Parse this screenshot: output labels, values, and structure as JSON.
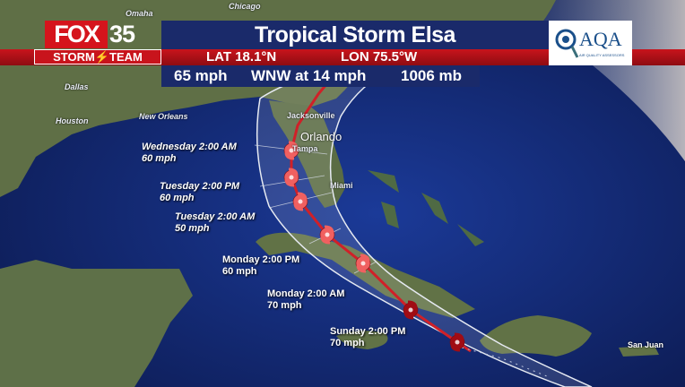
{
  "header": {
    "brand": "FOX 35",
    "brand_fox": "FOX",
    "brand_number": "35",
    "brand_team": "STORM⚡TEAM",
    "title": "Tropical Storm Elsa",
    "lat": "LAT 18.1°N",
    "lon": "LON 75.5°W",
    "wind": "65 mph",
    "movement": "WNW at 14 mph",
    "pressure": "1006 mb",
    "sponsor_logo": "AQA",
    "sponsor_tagline": "AIR QUALITY ASSESSORS"
  },
  "cities": [
    "Chicago",
    "Omaha",
    "Dallas",
    "Houston",
    "New Orleans",
    "Jacksonville",
    "Orlando",
    "Tampa",
    "Miami",
    "San Juan"
  ],
  "forecast_points": [
    {
      "time": "Wednesday 2:00 AM",
      "wind": "60 mph"
    },
    {
      "time": "Tuesday 2:00 PM",
      "wind": "60 mph"
    },
    {
      "time": "Tuesday 2:00 AM",
      "wind": "50 mph"
    },
    {
      "time": "Monday 2:00 PM",
      "wind": "60 mph"
    },
    {
      "time": "Monday 2:00 AM",
      "wind": "70 mph"
    },
    {
      "time": "Sunday 2:00 PM",
      "wind": "70 mph"
    }
  ],
  "colors": {
    "ocean": "#14307e",
    "land": "#5e7048",
    "track": "#d02028",
    "title_bar": "#1a2a6a",
    "red_bar": "#c8141c",
    "storm_icon_light": "#f06060",
    "storm_icon_dark": "#a00c14",
    "cone": "#dfe4ee"
  },
  "icons": {
    "storm": "tropical-storm-icon"
  }
}
